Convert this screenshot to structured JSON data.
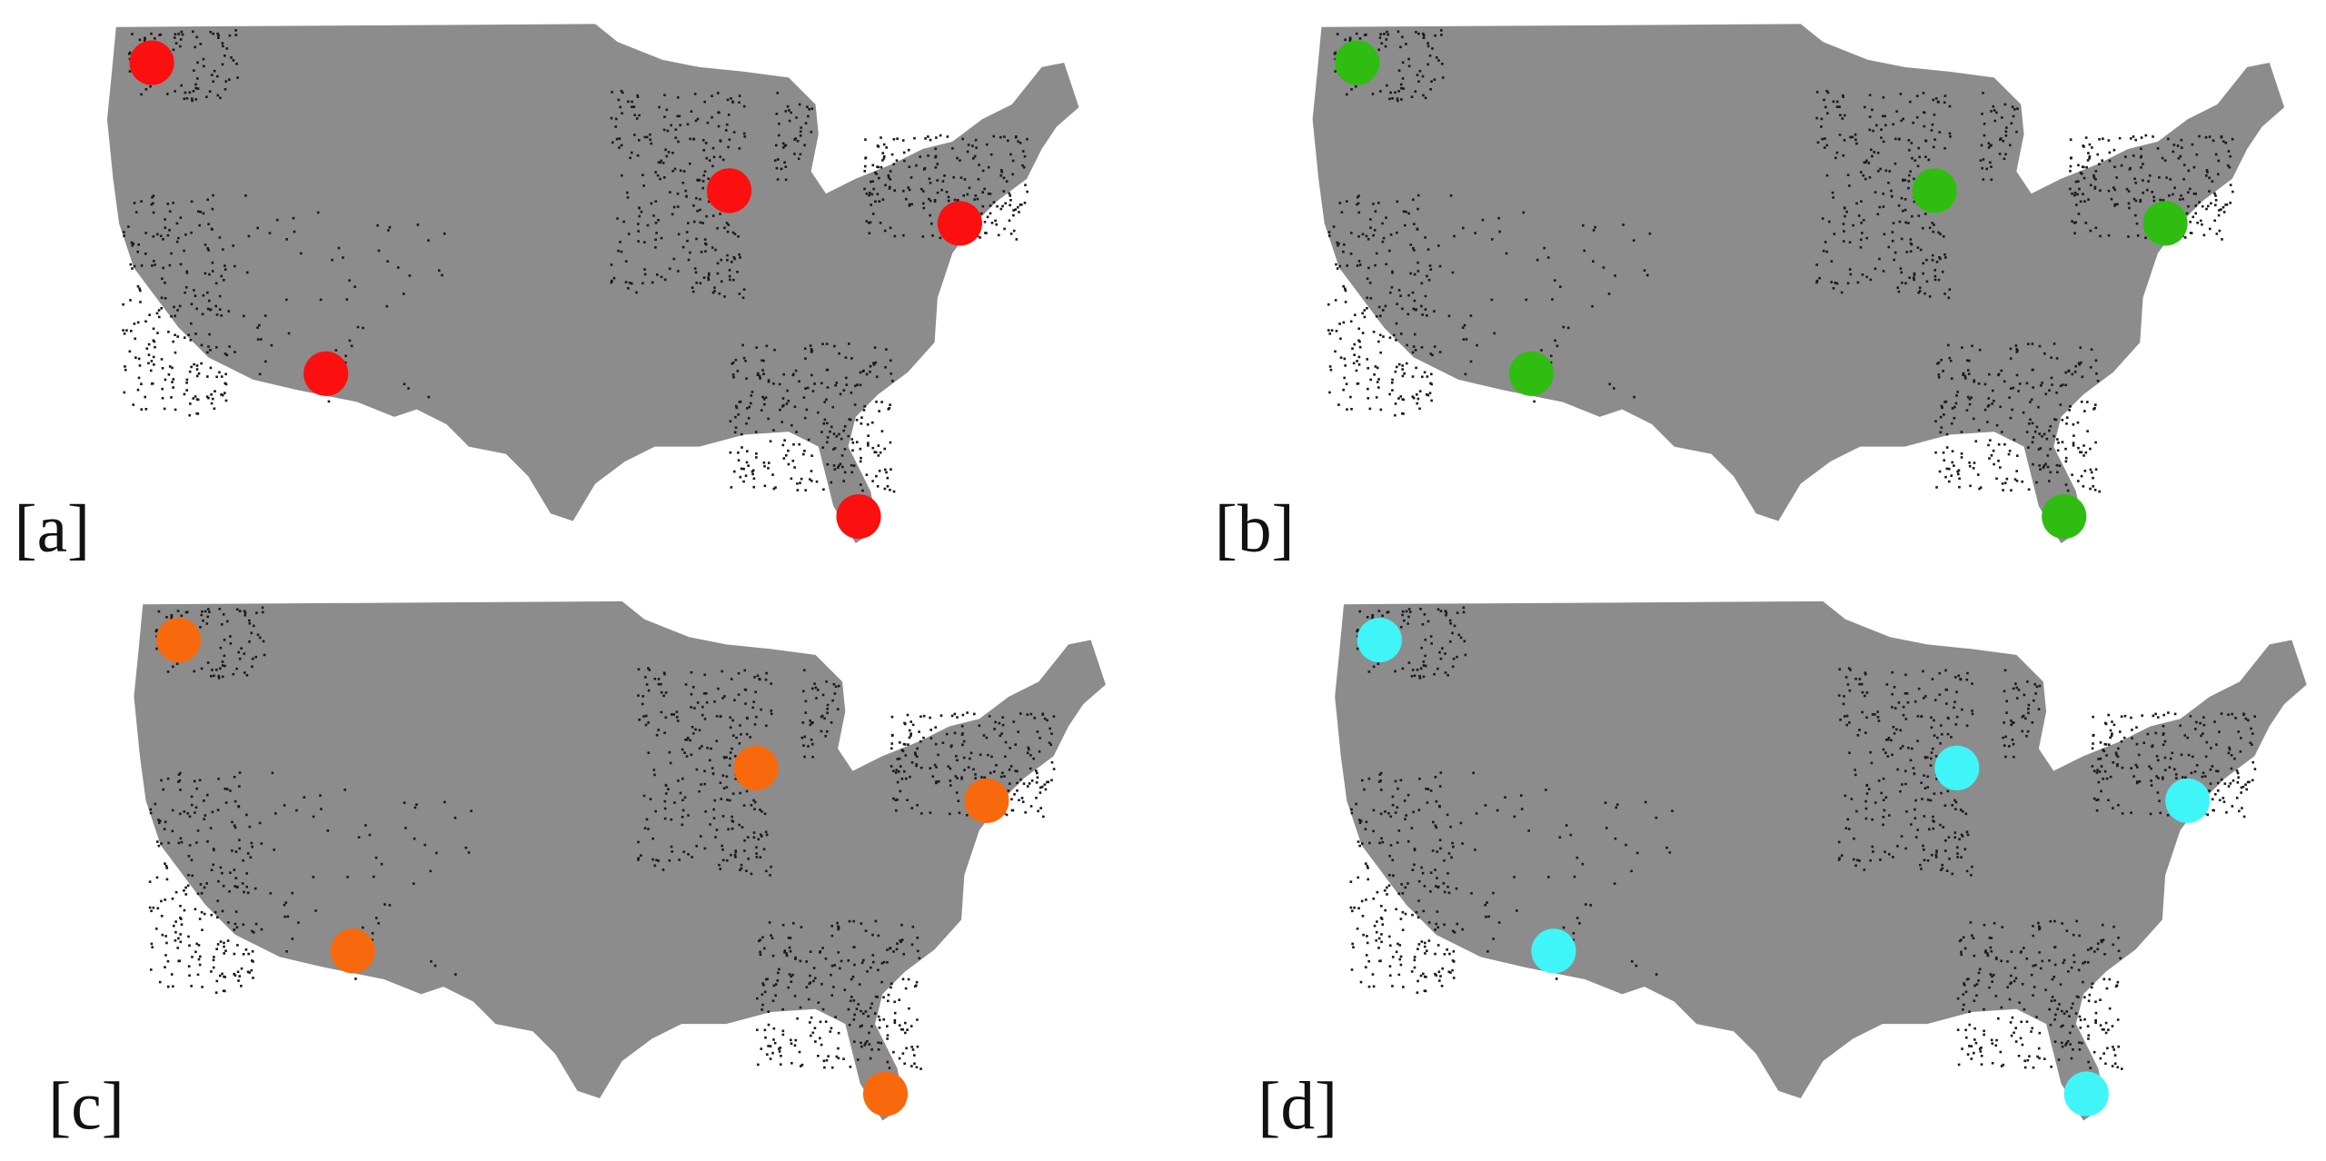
{
  "panels": [
    {
      "label": "[a]",
      "color": "#fb0f0f"
    },
    {
      "label": "[b]",
      "color": "#2fbd12"
    },
    {
      "label": "[c]",
      "color": "#f8690d"
    },
    {
      "label": "[d]",
      "color": "#40f5f8"
    }
  ]
}
